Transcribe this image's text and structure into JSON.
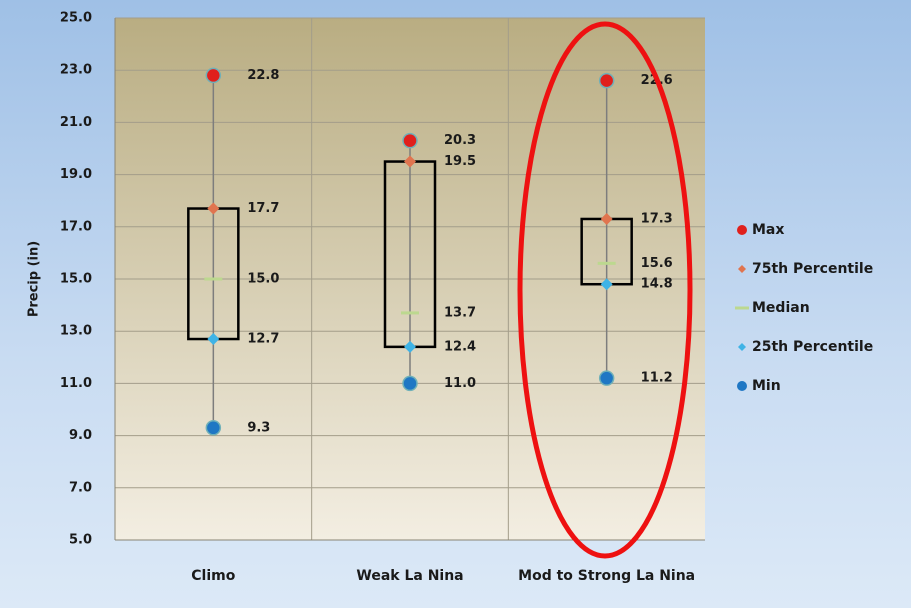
{
  "chart_data": {
    "type": "box",
    "y_axis_label": "Precip (in)",
    "categories": [
      "Climo",
      "Weak La Nina",
      "Mod to Strong La Nina"
    ],
    "series": [
      {
        "name": "Max",
        "color": "#e0201c",
        "marker": "circle",
        "values": [
          22.8,
          20.3,
          22.6
        ],
        "value_labels": [
          "22.8",
          "20.3",
          "22.6"
        ]
      },
      {
        "name": "75th Percentile",
        "color": "#e0744f",
        "marker": "diamond",
        "values": [
          17.7,
          19.5,
          17.3
        ],
        "value_labels": [
          "17.7",
          "19.5",
          "17.3"
        ]
      },
      {
        "name": "Median",
        "color": "#bcd88f",
        "marker": "dash",
        "values": [
          15.0,
          13.7,
          15.6
        ],
        "value_labels": [
          "15.0",
          "13.7",
          "15.6"
        ]
      },
      {
        "name": "25th Percentile",
        "color": "#3fb3e6",
        "marker": "diamond",
        "values": [
          12.7,
          12.4,
          14.8
        ],
        "value_labels": [
          "12.7",
          "12.4",
          "14.8"
        ]
      },
      {
        "name": "Min",
        "color": "#1f77c4",
        "marker": "circle",
        "values": [
          9.3,
          11.0,
          11.2
        ],
        "value_labels": [
          "9.3",
          "11.0",
          "11.2"
        ]
      }
    ],
    "ylim": [
      5,
      25
    ],
    "yticks": [
      {
        "value": 5,
        "label": "5.0"
      },
      {
        "value": 7,
        "label": "7.0"
      },
      {
        "value": 9,
        "label": "9.0"
      },
      {
        "value": 11,
        "label": "11.0"
      },
      {
        "value": 13,
        "label": "13.0"
      },
      {
        "value": 15,
        "label": "15.0"
      },
      {
        "value": 17,
        "label": "17.0"
      },
      {
        "value": 19,
        "label": "19.0"
      },
      {
        "value": 21,
        "label": "21.0"
      },
      {
        "value": 23,
        "label": "23.0"
      },
      {
        "value": 25,
        "label": "25.0"
      }
    ],
    "grid": true,
    "legend": "right"
  }
}
